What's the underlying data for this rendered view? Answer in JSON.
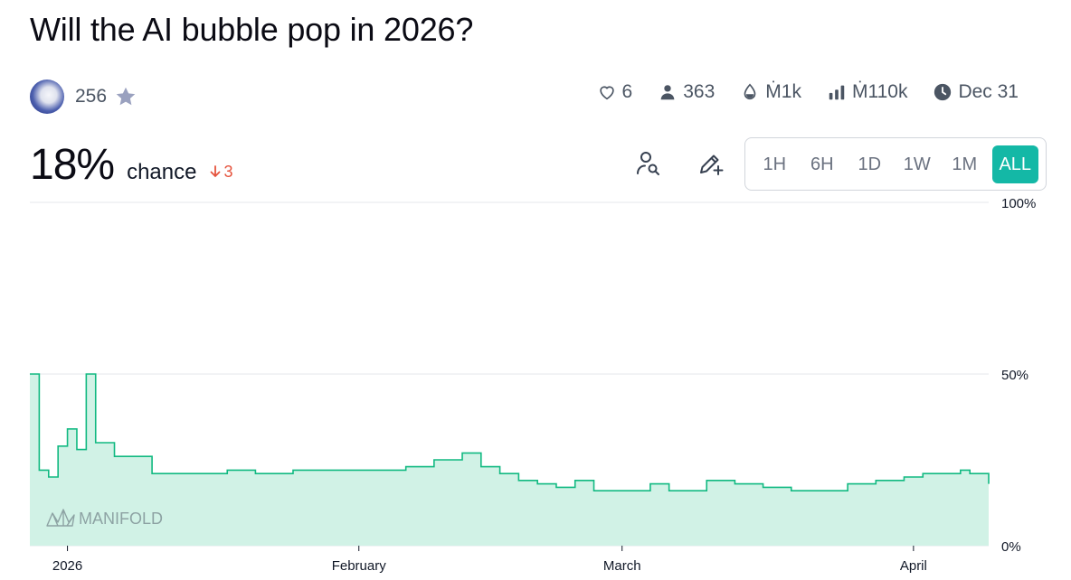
{
  "market": {
    "title": "Will the AI bubble pop in 2026?",
    "creator_likes": "256",
    "stats": {
      "likes": "6",
      "traders": "363",
      "liquidity": "Ṁ1k",
      "volume": "Ṁ110k",
      "close_date": "Dec 31"
    },
    "probability": "18%",
    "probability_label": "chance",
    "change": "3",
    "change_direction": "down"
  },
  "time_ranges": [
    "1H",
    "6H",
    "1D",
    "1W",
    "1M",
    "ALL"
  ],
  "active_range": "ALL",
  "watermark": "MANIFOLD",
  "colors": {
    "accent": "#14b8a6",
    "line": "#11b981",
    "area": "#d1f2e6",
    "change_down": "#e5533d"
  },
  "chart_data": {
    "type": "area",
    "x_ticks": [
      "2026",
      "February",
      "March",
      "April"
    ],
    "y_ticks": [
      "100%",
      "50%",
      "0%"
    ],
    "ylim": [
      0,
      100
    ],
    "xlim": [
      "2025-12-28",
      "2026-04-09"
    ],
    "x": [
      "2025-12-28",
      "2025-12-29",
      "2025-12-30",
      "2025-12-31",
      "2026-01-01",
      "2026-01-02",
      "2026-01-03",
      "2026-01-04",
      "2026-01-05",
      "2026-01-06",
      "2026-01-08",
      "2026-01-10",
      "2026-01-12",
      "2026-01-14",
      "2026-01-16",
      "2026-01-18",
      "2026-01-21",
      "2026-01-25",
      "2026-01-29",
      "2026-02-02",
      "2026-02-06",
      "2026-02-09",
      "2026-02-12",
      "2026-02-14",
      "2026-02-16",
      "2026-02-17",
      "2026-02-18",
      "2026-02-19",
      "2026-02-20",
      "2026-02-22",
      "2026-02-24",
      "2026-02-26",
      "2026-02-28",
      "2026-03-02",
      "2026-03-04",
      "2026-03-06",
      "2026-03-08",
      "2026-03-10",
      "2026-03-13",
      "2026-03-16",
      "2026-03-19",
      "2026-03-22",
      "2026-03-25",
      "2026-03-28",
      "2026-03-31",
      "2026-04-02",
      "2026-04-04",
      "2026-04-06",
      "2026-04-07",
      "2026-04-08",
      "2026-04-09"
    ],
    "values": [
      50,
      22,
      20,
      29,
      34,
      28,
      50,
      30,
      30,
      26,
      26,
      21,
      21,
      21,
      21,
      22,
      21,
      22,
      22,
      22,
      23,
      25,
      27,
      23,
      21,
      21,
      19,
      19,
      18,
      17,
      19,
      16,
      16,
      16,
      18,
      16,
      16,
      19,
      18,
      17,
      16,
      16,
      18,
      19,
      20,
      21,
      21,
      22,
      21,
      21,
      18
    ]
  }
}
